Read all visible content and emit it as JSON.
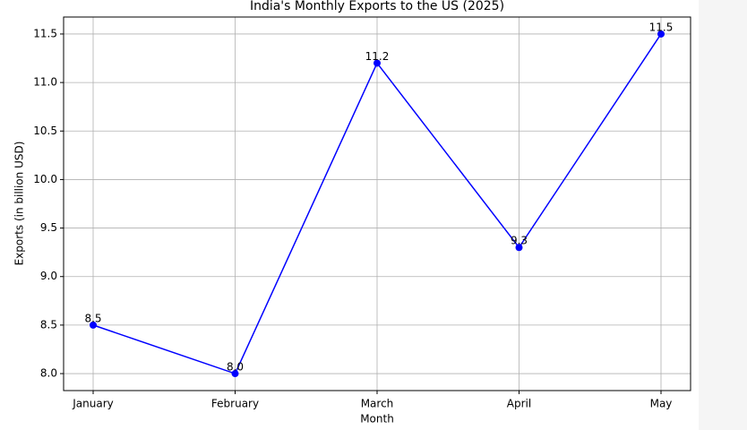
{
  "chart_data": {
    "type": "line",
    "title": "India's Monthly Exports to the US (2025)",
    "x_label": "Month",
    "y_label": "Exports (in billion USD)",
    "categories": [
      "January",
      "February",
      "March",
      "April",
      "May"
    ],
    "values": [
      8.5,
      8.0,
      11.2,
      9.3,
      11.5
    ],
    "value_labels": [
      "8.5",
      "8.0",
      "11.2",
      "9.3",
      "11.5"
    ],
    "color": "#0000ff",
    "ylim": [
      7.825,
      11.675
    ],
    "yticks": [
      {
        "value": 8,
        "label": "8.0"
      },
      8.5,
      {
        "value": 9,
        "label": "9.0"
      },
      9.5,
      {
        "value": 10,
        "label": "10.0"
      },
      10.5,
      {
        "value": 11,
        "label": "11.0"
      },
      11.5
    ],
    "grid": true
  }
}
